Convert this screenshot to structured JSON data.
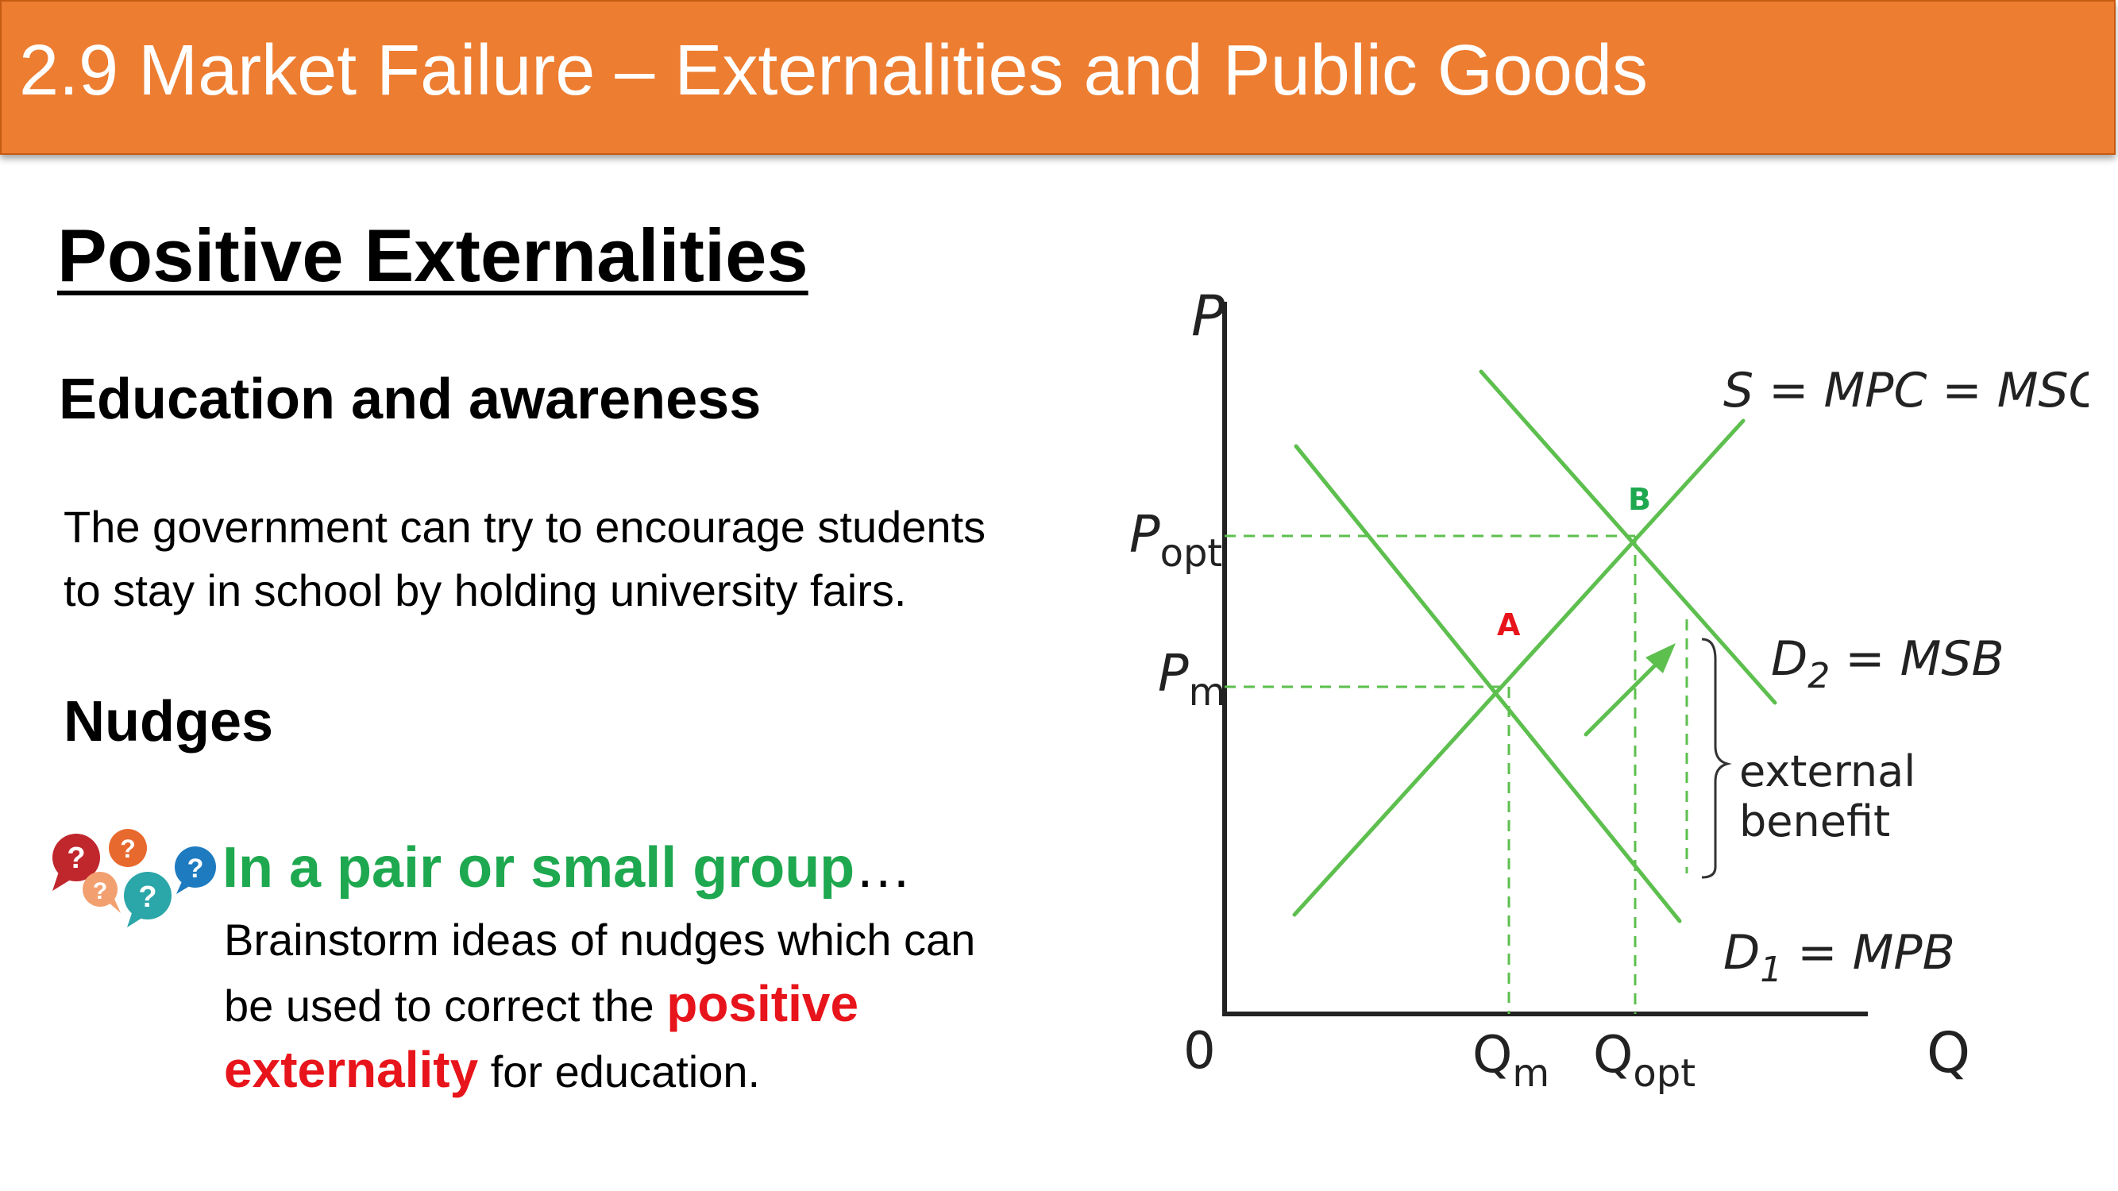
{
  "header": {
    "title": "2.9 Market Failure – Externalities and Public Goods"
  },
  "main": {
    "heading": "Positive Externalities",
    "section1": {
      "title": "Education and awareness",
      "lines": [
        "The government can try to encourage students",
        "to stay in school by holding university fairs."
      ]
    },
    "section2": {
      "title": "Nudges"
    },
    "activity": {
      "title": "In a pair or small group",
      "ellipsis": "…",
      "line1": "Brainstorm ideas of nudges which can",
      "line2_pre": "be used to correct the ",
      "line2_hl": "positive",
      "line3_hl": "externality",
      "line3_post": " for education.",
      "icon_glyph": "?"
    }
  },
  "diagram": {
    "y_axis": "P",
    "x_axis": "Q",
    "origin": "0",
    "p_opt_main": "P",
    "p_opt_sub": "opt",
    "p_m_main": "P",
    "p_m_sub": "m",
    "q_m_main": "Q",
    "q_m_sub": "m",
    "q_opt_main": "Q",
    "q_opt_sub": "opt",
    "supply_label": "S = MPC = MSC",
    "d2_pre": "D",
    "d2_sub": "2",
    "d2_post": " = MSB",
    "d1_pre": "D",
    "d1_sub": "1",
    "d1_post": " = MPB",
    "point_a": "A",
    "point_b": "B",
    "ext_line1": "external",
    "ext_line2": "benefit",
    "colors": {
      "curve": "#5DBF4E",
      "point_a": "#E8141B",
      "point_b": "#1EA84F",
      "header": "#ED7D31"
    }
  }
}
